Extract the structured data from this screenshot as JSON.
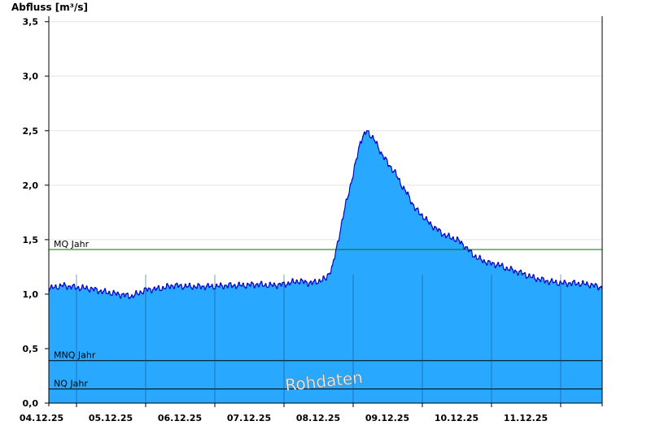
{
  "colors": {
    "area_fill": "#29a8ff",
    "line": "#0000cc",
    "mq_line": "#007000",
    "mnq_line": "#000000",
    "nq_line": "#000000",
    "grid": "#e4e4e4",
    "axis": "#000000"
  },
  "chart_data": {
    "type": "area",
    "ylabel": "Abfluss [m³/s]",
    "ylim": [
      0,
      3.55
    ],
    "yticks": [
      {
        "value": 0.0,
        "label": "0,0"
      },
      {
        "value": 0.5,
        "label": "0,5"
      },
      {
        "value": 1.0,
        "label": "1,0"
      },
      {
        "value": 1.5,
        "label": "1,5"
      },
      {
        "value": 2.0,
        "label": "2,0"
      },
      {
        "value": 2.5,
        "label": "2,5"
      },
      {
        "value": 3.0,
        "label": "3,0"
      },
      {
        "value": 3.5,
        "label": "3,5"
      }
    ],
    "x_range_days": [
      3.6,
      11.6
    ],
    "x_unit": "December 2025 (day of month)",
    "xticks": [
      {
        "value": 4,
        "label": "04.12.25"
      },
      {
        "value": 5,
        "label": "05.12.25"
      },
      {
        "value": 6,
        "label": "06.12.25"
      },
      {
        "value": 7,
        "label": "07.12.25"
      },
      {
        "value": 8,
        "label": "08.12.25"
      },
      {
        "value": 9,
        "label": "09.12.25"
      },
      {
        "value": 10,
        "label": "10.12.25"
      },
      {
        "value": 11,
        "label": "11.12.25"
      }
    ],
    "grid": true,
    "reference_lines": [
      {
        "key": "mq",
        "label": "MQ Jahr",
        "value": 1.41
      },
      {
        "key": "mnq",
        "label": "MNQ Jahr",
        "value": 0.39
      },
      {
        "key": "nq",
        "label": "NQ Jahr",
        "value": 0.13
      }
    ],
    "watermark": "Rohdaten",
    "series": [
      {
        "x": [
          3.6,
          3.8,
          4.0,
          4.2,
          4.4,
          4.6,
          4.8,
          5.0,
          5.2,
          5.4,
          5.6,
          5.8,
          6.0,
          6.2,
          6.4,
          6.6,
          6.8,
          7.0,
          7.2,
          7.4,
          7.6,
          7.7,
          7.8,
          7.9,
          8.0,
          8.1,
          8.2,
          8.3,
          8.4,
          8.5,
          8.6,
          8.7,
          8.8,
          8.9,
          9.0,
          9.1,
          9.2,
          9.3,
          9.4,
          9.5,
          9.6,
          9.7,
          9.8,
          9.9,
          10.0,
          10.1,
          10.2,
          10.4,
          10.6,
          10.8,
          11.0,
          11.2,
          11.4,
          11.6
        ],
        "y": [
          1.05,
          1.08,
          1.06,
          1.05,
          1.02,
          1.0,
          0.98,
          1.04,
          1.05,
          1.08,
          1.07,
          1.07,
          1.07,
          1.08,
          1.08,
          1.09,
          1.08,
          1.09,
          1.12,
          1.1,
          1.14,
          1.25,
          1.55,
          1.85,
          2.1,
          2.4,
          2.5,
          2.42,
          2.3,
          2.2,
          2.12,
          2.0,
          1.9,
          1.78,
          1.72,
          1.65,
          1.6,
          1.55,
          1.52,
          1.5,
          1.45,
          1.38,
          1.33,
          1.3,
          1.28,
          1.27,
          1.24,
          1.2,
          1.15,
          1.12,
          1.1,
          1.1,
          1.09,
          1.06
        ]
      }
    ]
  }
}
